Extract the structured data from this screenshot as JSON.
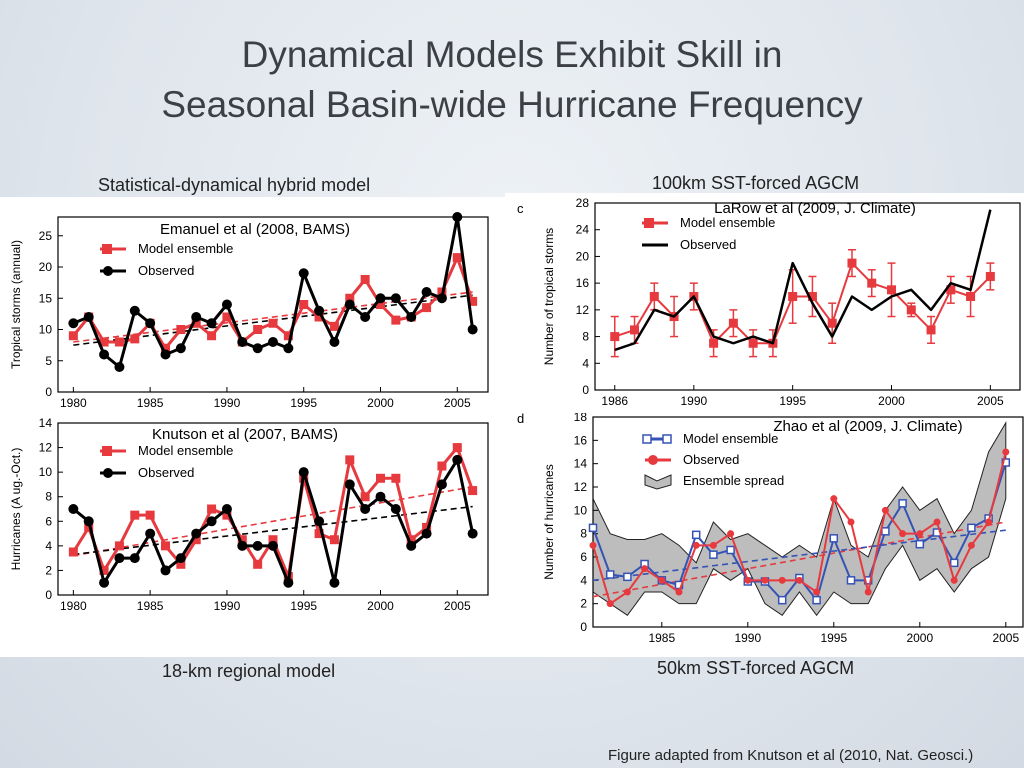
{
  "slide": {
    "title_line1": "Dynamical Models Exhibit Skill in",
    "title_line2": "Seasonal Basin-wide Hurricane Frequency",
    "caption_left_top": "Statistical-dynamical hybrid model",
    "caption_right_top": "100km SST-forced AGCM",
    "caption_left_bottom": "18-km regional model",
    "caption_right_bottom": "50km SST-forced AGCM",
    "footer": "Figure adapted from Knutson et al (2010, Nat. Geosci.)"
  },
  "colors": {
    "red": "#e63a3f",
    "black": "#000000",
    "blue": "#3553b5",
    "spread": "#bdbdbd"
  },
  "chart_data": [
    {
      "id": "a",
      "type": "line",
      "title": "Emanuel et al (2008, BAMS)",
      "panel_letter": "",
      "xlabel": "",
      "ylabel": "Tropical storms (annual)",
      "xlim": [
        1979,
        2007
      ],
      "ylim": [
        0,
        28
      ],
      "xticks": [
        1980,
        1985,
        1990,
        1995,
        2000,
        2005
      ],
      "yticks": [
        0,
        5,
        10,
        15,
        20,
        25
      ],
      "legend": [
        {
          "label": "Model ensemble",
          "color": "#e63a3f",
          "marker": "square"
        },
        {
          "label": "Observed",
          "color": "#000000",
          "marker": "circle"
        }
      ],
      "x": [
        1980,
        1981,
        1982,
        1983,
        1984,
        1985,
        1986,
        1987,
        1988,
        1989,
        1990,
        1991,
        1992,
        1993,
        1994,
        1995,
        1996,
        1997,
        1998,
        1999,
        2000,
        2001,
        2002,
        2003,
        2004,
        2005,
        2006
      ],
      "series": [
        {
          "name": "Model ensemble",
          "color": "#e63a3f",
          "marker": "square",
          "width": 3,
          "values": [
            9,
            12,
            8,
            8,
            8.5,
            11,
            7,
            10,
            11,
            9,
            12,
            8,
            10,
            11,
            9,
            14,
            12,
            10.5,
            15,
            18,
            14,
            11.5,
            12,
            13.5,
            16,
            21.5,
            14.5
          ]
        },
        {
          "name": "Observed",
          "color": "#000000",
          "marker": "circle",
          "width": 3,
          "values": [
            11,
            12,
            6,
            4,
            13,
            11,
            6,
            7,
            12,
            11,
            14,
            8,
            7,
            8,
            7,
            19,
            13,
            8,
            14,
            12,
            15,
            15,
            12,
            16,
            15,
            28,
            10
          ]
        }
      ],
      "trends": [
        {
          "color": "#e63a3f",
          "from": [
            1980,
            8.0
          ],
          "to": [
            2006,
            16.0
          ]
        },
        {
          "color": "#000000",
          "from": [
            1980,
            7.5
          ],
          "to": [
            2006,
            15.5
          ]
        }
      ]
    },
    {
      "id": "b",
      "type": "line",
      "title": "Knutson et al (2007, BAMS)",
      "panel_letter": "",
      "xlabel": "",
      "ylabel": "Hurricanes (A ug.-Oct.)",
      "xlim": [
        1979,
        2007
      ],
      "ylim": [
        0,
        14
      ],
      "xticks": [
        1980,
        1985,
        1990,
        1995,
        2000,
        2005
      ],
      "yticks": [
        0,
        2,
        4,
        6,
        8,
        10,
        12,
        14
      ],
      "legend": [
        {
          "label": "Model ensemble",
          "color": "#e63a3f",
          "marker": "square"
        },
        {
          "label": "Observed",
          "color": "#000000",
          "marker": "circle"
        }
      ],
      "x": [
        1980,
        1981,
        1982,
        1983,
        1984,
        1985,
        1986,
        1987,
        1988,
        1989,
        1990,
        1991,
        1992,
        1993,
        1994,
        1995,
        1996,
        1997,
        1998,
        1999,
        2000,
        2001,
        2002,
        2003,
        2004,
        2005,
        2006
      ],
      "series": [
        {
          "name": "Model ensemble",
          "color": "#e63a3f",
          "marker": "square",
          "width": 3,
          "values": [
            3.5,
            5.5,
            2,
            4,
            6.5,
            6.5,
            4,
            2.5,
            4.5,
            7,
            6.5,
            4.5,
            2.5,
            4.5,
            1.5,
            9.5,
            5,
            4.5,
            11,
            8,
            9.5,
            9.5,
            4.5,
            5.5,
            10.5,
            12,
            8.5
          ]
        },
        {
          "name": "Observed",
          "color": "#000000",
          "marker": "circle",
          "width": 3,
          "values": [
            7,
            6,
            1,
            3,
            3,
            5,
            2,
            3,
            5,
            6,
            7,
            4,
            4,
            4,
            1,
            10,
            6,
            1,
            9,
            7,
            8,
            7,
            4,
            5,
            9,
            11,
            5
          ]
        }
      ],
      "trends": [
        {
          "color": "#e63a3f",
          "from": [
            1980,
            3.2
          ],
          "to": [
            2006,
            8.8
          ]
        },
        {
          "color": "#000000",
          "from": [
            1980,
            3.3
          ],
          "to": [
            2006,
            7.2
          ]
        }
      ]
    },
    {
      "id": "c",
      "type": "line",
      "title": "LaRow et al (2009, J. Climate)",
      "panel_letter": "c",
      "xlabel": "",
      "ylabel": "Number of tropical storms",
      "xlim": [
        1985,
        2006.5
      ],
      "ylim": [
        0,
        28
      ],
      "xticks": [
        1986,
        1990,
        1995,
        2000,
        2005
      ],
      "yticks": [
        0,
        4,
        8,
        12,
        16,
        20,
        24,
        28
      ],
      "legend": [
        {
          "label": "Model ensemble",
          "color": "#e63a3f",
          "marker": "square"
        },
        {
          "label": "Observed",
          "color": "#000000",
          "marker": "line"
        }
      ],
      "x": [
        1986,
        1987,
        1988,
        1989,
        1990,
        1991,
        1992,
        1993,
        1994,
        1995,
        1996,
        1997,
        1998,
        1999,
        2000,
        2001,
        2002,
        2003,
        2004,
        2005
      ],
      "series": [
        {
          "name": "Model ensemble",
          "color": "#e63a3f",
          "marker": "square",
          "width": 2,
          "values": [
            8,
            9,
            14,
            11,
            14,
            7,
            10,
            7,
            7,
            14,
            14,
            10,
            19,
            16,
            15,
            12,
            9,
            15,
            14,
            17
          ],
          "error": [
            3,
            2,
            2,
            3,
            2,
            2,
            2,
            2,
            2,
            4,
            3,
            3,
            2,
            2,
            4,
            1,
            2,
            2,
            3,
            2
          ]
        },
        {
          "name": "Observed",
          "color": "#000000",
          "marker": "none",
          "width": 2.5,
          "values": [
            6,
            7,
            12,
            11,
            14,
            8,
            7,
            8,
            7,
            19,
            13,
            8,
            14,
            12,
            14,
            15,
            12,
            16,
            15,
            27
          ]
        }
      ],
      "trends": []
    },
    {
      "id": "d",
      "type": "line",
      "title": "Zhao et al (2009, J. Climate)",
      "panel_letter": "d",
      "xlabel": "",
      "ylabel": "Number of hurricanes",
      "xlim": [
        1981,
        2006
      ],
      "ylim": [
        0,
        18
      ],
      "xticks": [
        1985,
        1990,
        1995,
        2000,
        2005
      ],
      "yticks": [
        0,
        2,
        4,
        6,
        8,
        10,
        12,
        14,
        16,
        18
      ],
      "legend": [
        {
          "label": "Model ensemble",
          "color": "#3553b5",
          "marker": "open-square"
        },
        {
          "label": "Observed",
          "color": "#e63a3f",
          "marker": "circle"
        },
        {
          "label": "Ensemble spread",
          "color": "#bdbdbd",
          "marker": "band"
        }
      ],
      "x": [
        1981,
        1982,
        1983,
        1984,
        1985,
        1986,
        1987,
        1988,
        1989,
        1990,
        1991,
        1992,
        1993,
        1994,
        1995,
        1996,
        1997,
        1998,
        1999,
        2000,
        2001,
        2002,
        2003,
        2004,
        2005
      ],
      "spread_upper": [
        11,
        8,
        7.5,
        7.5,
        8,
        7,
        5.5,
        9,
        7.5,
        8,
        7,
        6,
        7,
        6,
        11,
        7,
        6,
        10,
        12,
        10,
        11,
        8,
        10,
        15,
        17.5
      ],
      "spread_lower": [
        3,
        2,
        1,
        3,
        3,
        2,
        2,
        5,
        4,
        5,
        2,
        1,
        3,
        1,
        3,
        2,
        2,
        5,
        7,
        4,
        5,
        3,
        5,
        6,
        11
      ],
      "series": [
        {
          "name": "Model ensemble",
          "color": "#3553b5",
          "marker": "open-square",
          "width": 2,
          "values": [
            8.5,
            4.5,
            4.3,
            5.4,
            4,
            3.6,
            7.9,
            6.2,
            6.6,
            3.9,
            3.9,
            2.3,
            4.2,
            2.3,
            7.6,
            4,
            4,
            8.2,
            10.6,
            7.1,
            8.1,
            5.5,
            8.5,
            9.3,
            14.1
          ]
        },
        {
          "name": "Observed",
          "color": "#e63a3f",
          "marker": "circle",
          "width": 2,
          "values": [
            7,
            2,
            3,
            5,
            4,
            3,
            7,
            7,
            8,
            4,
            4,
            4,
            4,
            3,
            11,
            9,
            3,
            10,
            8,
            8,
            9,
            4,
            7,
            9,
            15
          ]
        }
      ],
      "trends": [
        {
          "color": "#e63a3f",
          "from": [
            1981,
            2.6
          ],
          "to": [
            2005,
            9.0
          ]
        },
        {
          "color": "#3553b5",
          "from": [
            1981,
            4.0
          ],
          "to": [
            2005,
            8.3
          ]
        }
      ]
    }
  ]
}
